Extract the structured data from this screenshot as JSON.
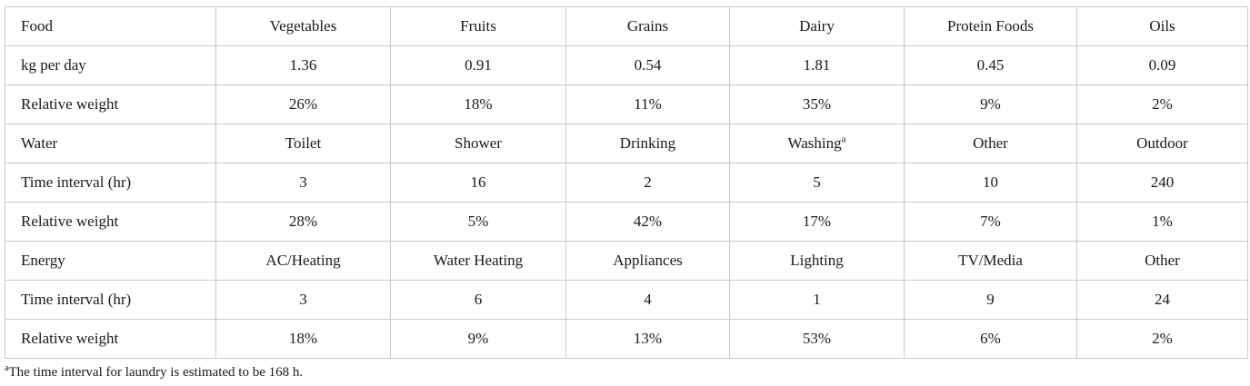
{
  "table": {
    "rows": [
      [
        "Food",
        "Vegetables",
        "Fruits",
        "Grains",
        "Dairy",
        "Protein Foods",
        "Oils"
      ],
      [
        "kg per day",
        "1.36",
        "0.91",
        "0.54",
        "1.81",
        "0.45",
        "0.09"
      ],
      [
        "Relative weight",
        "26%",
        "18%",
        "11%",
        "35%",
        "9%",
        "2%"
      ],
      [
        "Water",
        "Toilet",
        "Shower",
        "Drinking",
        "Washing",
        "Other",
        "Outdoor"
      ],
      [
        "Time interval (hr)",
        "3",
        "16",
        "2",
        "5",
        "10",
        "240"
      ],
      [
        "Relative weight",
        "28%",
        "5%",
        "42%",
        "17%",
        "7%",
        "1%"
      ],
      [
        "Energy",
        "AC/Heating",
        "Water Heating",
        "Appliances",
        "Lighting",
        "TV/Media",
        "Other"
      ],
      [
        "Time interval (hr)",
        "3",
        "6",
        "4",
        "1",
        "9",
        "24"
      ],
      [
        "Relative weight",
        "18%",
        "9%",
        "13%",
        "53%",
        "6%",
        "2%"
      ]
    ],
    "superscripts": {
      "washing_mark": "a"
    }
  },
  "footnote": {
    "mark": "a",
    "text": "The time interval for laundry is estimated to be 168 h."
  }
}
